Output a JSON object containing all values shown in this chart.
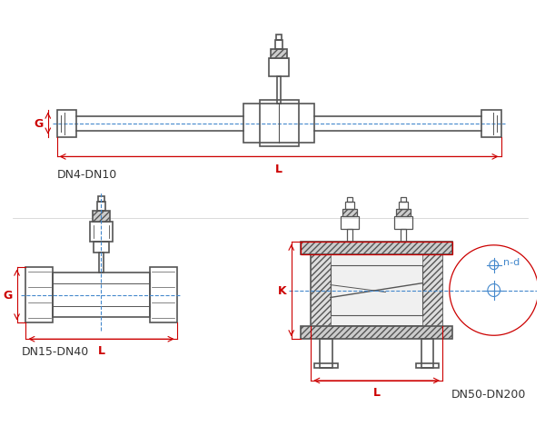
{
  "bg_color": "#ffffff",
  "line_color": "#555555",
  "dim_color": "#cc0000",
  "blue_color": "#4488cc",
  "label_color": "#333333",
  "fig_width": 6.0,
  "fig_height": 4.81,
  "labels": {
    "dn4": "DN4-DN10",
    "dn15": "DN15-DN40",
    "dn50": "DN50-DN200",
    "L": "L",
    "G": "G",
    "K": "K",
    "nd": "n-d"
  }
}
